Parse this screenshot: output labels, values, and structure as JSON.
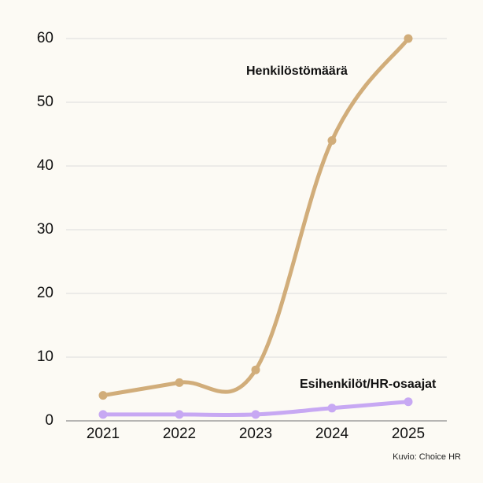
{
  "chart_data": {
    "type": "line",
    "x": [
      "2021",
      "2022",
      "2023",
      "2024",
      "2025"
    ],
    "ylim": [
      0,
      60
    ],
    "yticks": [
      0,
      10,
      20,
      30,
      40,
      50,
      60
    ],
    "grid": true,
    "series": [
      {
        "name": "Henkilöstömäärä",
        "values": [
          4,
          6,
          8,
          44,
          60
        ],
        "color": "#d1ad7a"
      },
      {
        "name": "Esihenkilöt/HR-osaajat",
        "values": [
          1,
          1,
          1,
          2,
          3
        ],
        "color": "#c7a8f3"
      }
    ],
    "annotations": {
      "credit": "Kuvio: Choice HR"
    }
  }
}
